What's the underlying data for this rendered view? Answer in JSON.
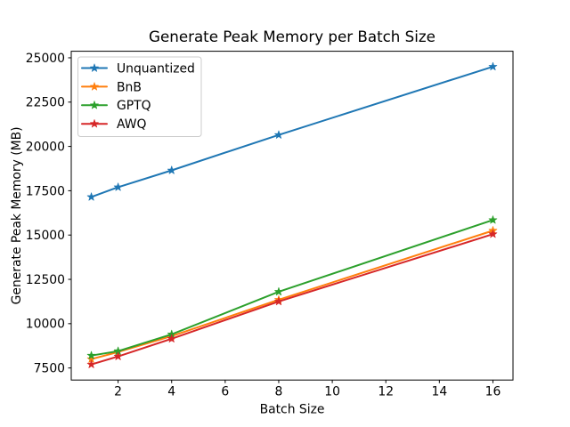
{
  "chart_data": {
    "type": "line",
    "title": "Generate Peak Memory per Batch Size",
    "xlabel": "Batch Size",
    "ylabel": "Generate Peak Memory (MB)",
    "x": [
      1,
      2,
      4,
      8,
      16
    ],
    "series": [
      {
        "name": "Unquantized",
        "color": "#1f77b4",
        "values": [
          17150,
          17700,
          18650,
          20650,
          24500
        ]
      },
      {
        "name": "BnB",
        "color": "#ff7f0e",
        "values": [
          8000,
          8400,
          9300,
          11350,
          15250
        ]
      },
      {
        "name": "GPTQ",
        "color": "#2ca02c",
        "values": [
          8200,
          8450,
          9400,
          11800,
          15850
        ]
      },
      {
        "name": "AWQ",
        "color": "#d62728",
        "values": [
          7700,
          8150,
          9150,
          11250,
          15050
        ]
      }
    ],
    "xticks": [
      2,
      4,
      6,
      8,
      10,
      12,
      14,
      16
    ],
    "yticks": [
      7500,
      10000,
      12500,
      15000,
      17500,
      20000,
      22500,
      25000
    ],
    "xlim": [
      0.25,
      16.75
    ],
    "ylim": [
      6820,
      25370
    ],
    "grid": false,
    "marker": "star",
    "legend_position": "upper left",
    "background_color": "#ffffff",
    "axis_color": "#000000",
    "legend_border_color": "#cccccc"
  }
}
